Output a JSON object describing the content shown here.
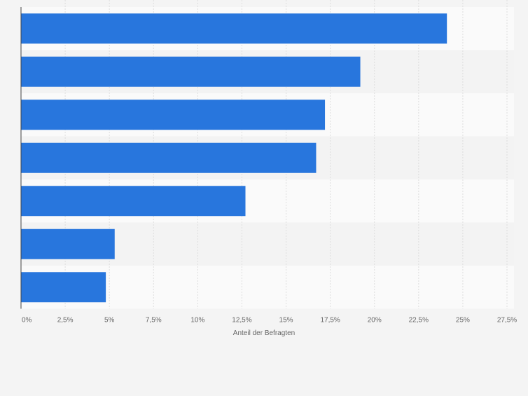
{
  "chart_data": {
    "type": "bar",
    "orientation": "horizontal",
    "categories": [
      "",
      "",
      "",
      "",
      "",
      "",
      ""
    ],
    "values": [
      24.1,
      19.2,
      17.2,
      16.7,
      12.7,
      5.3,
      4.8
    ],
    "xlabel": "Anteil der Befragten",
    "xlim": [
      0,
      27.5
    ],
    "xticks": [
      0,
      2.5,
      5,
      7.5,
      10,
      12.5,
      15,
      17.5,
      20,
      22.5,
      25,
      27.5
    ],
    "xtick_labels": [
      "0%",
      "2,5%",
      "5%",
      "7,5%",
      "10%",
      "12,5%",
      "15%",
      "17,5%",
      "20%",
      "22,5%",
      "25%",
      "27,5%"
    ],
    "grid": true,
    "legend": "none"
  },
  "colors": {
    "bar": "#2876dd",
    "band_light": "#fafafa",
    "band_dark": "#f3f3f3",
    "background": "#f4f4f4",
    "grid": "#dedede",
    "axis": "#444444",
    "text": "#666666"
  }
}
